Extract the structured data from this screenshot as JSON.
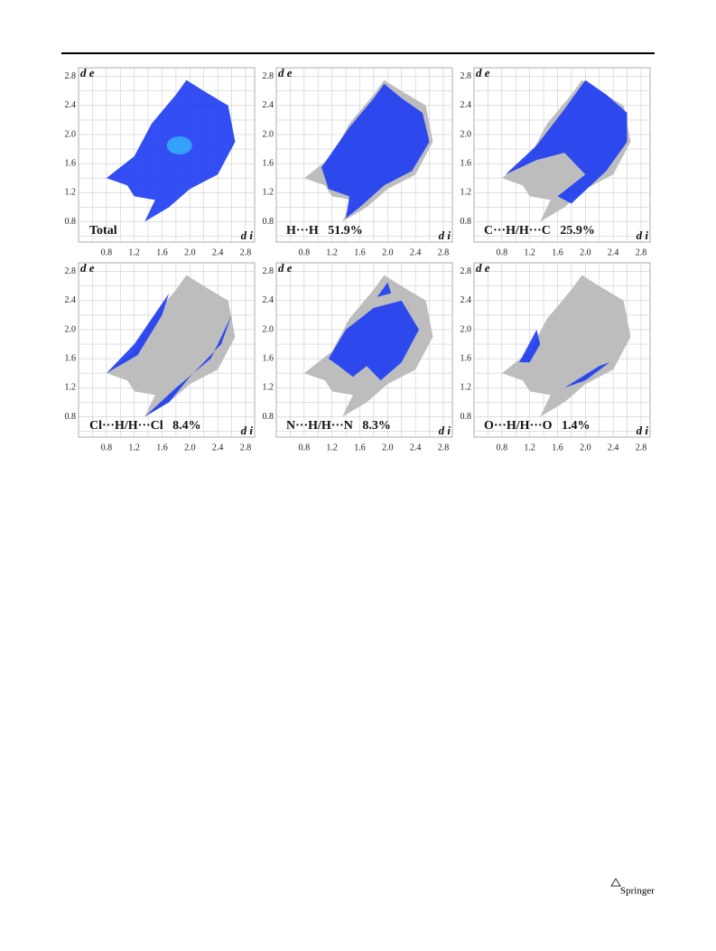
{
  "figure": {
    "axis_y": "d e",
    "axis_x": "d i",
    "panels": [
      {
        "label": "Total",
        "x_ticks": [
          "0.8",
          "1.2",
          "1.6",
          "2.0",
          "2.4",
          "2.8"
        ],
        "y_ticks": [
          "0.8",
          "1.2",
          "1.6",
          "2.0",
          "2.4",
          "2.8"
        ]
      },
      {
        "label": "H···H   51.9%",
        "x_ticks": [
          "0.8",
          "1.2",
          "1.6",
          "2.0",
          "2.4",
          "2.8"
        ],
        "y_ticks": [
          "0.8",
          "1.2",
          "1.6",
          "2.0",
          "2.4",
          "2.8"
        ]
      },
      {
        "label": "C···H/H···C   25.9%",
        "x_ticks": [
          "0.8",
          "1.2",
          "1.6",
          "2.0",
          "2.4",
          "2.8"
        ],
        "y_ticks": [
          "0.8",
          "1.2",
          "1.6",
          "2.0",
          "2.4",
          "2.8"
        ]
      },
      {
        "label": "Cl···H/H···Cl   8.4%",
        "x_ticks": [
          "0.8",
          "1.2",
          "1.6",
          "2.0",
          "2.4",
          "2.8"
        ],
        "y_ticks": [
          "0.8",
          "1.2",
          "1.6",
          "2.0",
          "2.4",
          "2.8"
        ]
      },
      {
        "label": "N···H/H···N   8.3%",
        "x_ticks": [
          "0.8",
          "1.2",
          "1.6",
          "2.0",
          "2.4",
          "2.8"
        ],
        "y_ticks": [
          "0.8",
          "1.2",
          "1.6",
          "2.0",
          "2.4",
          "2.8"
        ]
      },
      {
        "label": "O···H/H···O   1.4%",
        "x_ticks": [
          "0.8",
          "1.2",
          "1.6",
          "2.0",
          "2.4",
          "2.8"
        ],
        "y_ticks": [
          "0.8",
          "1.2",
          "1.6",
          "2.0",
          "2.4",
          "2.8"
        ]
      }
    ]
  },
  "footer": {
    "publisher": "Springer"
  }
}
